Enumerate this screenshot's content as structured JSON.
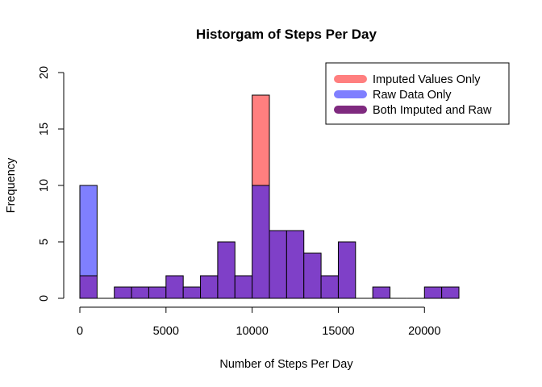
{
  "chart_data": {
    "type": "bar",
    "title": "Historgam of Steps Per Day",
    "xlabel": "Number of Steps Per Day",
    "ylabel": "Frequency",
    "xlim": [
      0,
      22000
    ],
    "ylim": [
      0,
      20
    ],
    "x_ticks": [
      "0",
      "5000",
      "10000",
      "15000",
      "20000"
    ],
    "y_ticks": [
      "0",
      "5",
      "10",
      "15",
      "20"
    ],
    "bin_width": 1000,
    "bin_starts": [
      0,
      1000,
      2000,
      3000,
      4000,
      5000,
      6000,
      7000,
      8000,
      9000,
      10000,
      11000,
      12000,
      13000,
      14000,
      15000,
      16000,
      17000,
      18000,
      19000,
      20000,
      21000
    ],
    "series": [
      {
        "name": "Imputed Values Only",
        "color": "#ff7f7f",
        "values": [
          2,
          0,
          1,
          1,
          1,
          2,
          1,
          2,
          5,
          2,
          18,
          6,
          6,
          4,
          2,
          5,
          0,
          1,
          0,
          0,
          1,
          1
        ]
      },
      {
        "name": "Raw Data Only",
        "color": "#7f7fff",
        "values": [
          10,
          0,
          1,
          1,
          1,
          2,
          1,
          2,
          5,
          2,
          10,
          6,
          6,
          4,
          2,
          5,
          0,
          1,
          0,
          0,
          1,
          1
        ]
      }
    ],
    "overlap_color": "#7f40c8",
    "legend": {
      "position": "top-right",
      "entries": [
        {
          "label": "Imputed Values Only",
          "color": "#ff7f7f"
        },
        {
          "label": "Raw Data Only",
          "color": "#7f7fff"
        },
        {
          "label": "Both Imputed and Raw",
          "color": "#7f2a7f"
        }
      ]
    },
    "grid": false
  }
}
